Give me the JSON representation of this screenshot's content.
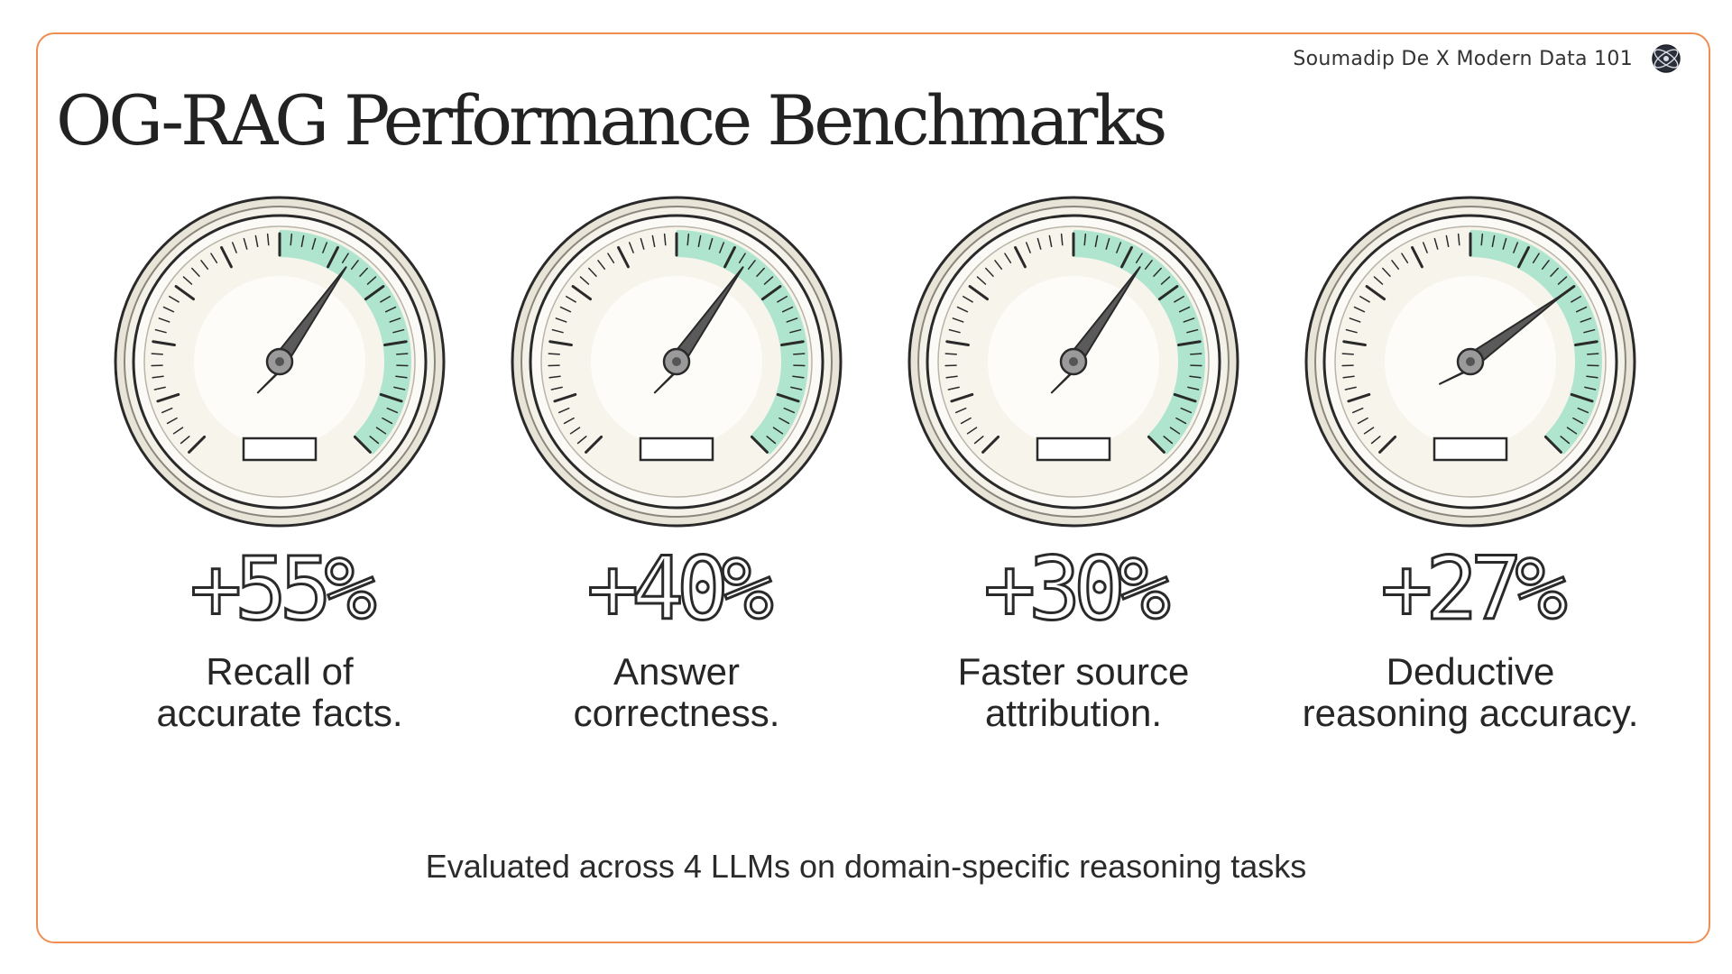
{
  "header": {
    "brand_text": "Soumadip De X Modern Data 101",
    "brand_icon": "globe-logo-icon"
  },
  "title": "OG-RAG Performance Benchmarks",
  "colors": {
    "frame_border": "#ef8d52",
    "gauge_green": "#a6e3cb",
    "gauge_face": "#f7f4ec",
    "ink": "#2a2a2a"
  },
  "metrics": [
    {
      "value": "+55%",
      "label_line1": "Recall of",
      "label_line2": "accurate facts.",
      "needle_level": 0.63
    },
    {
      "value": "+40%",
      "label_line1": "Answer",
      "label_line2": "correctness.",
      "needle_level": 0.63
    },
    {
      "value": "+30%",
      "label_line1": "Faster source",
      "label_line2": "attribution.",
      "needle_level": 0.63
    },
    {
      "value": "+27%",
      "label_line1": "Deductive",
      "label_line2": "reasoning accuracy.",
      "needle_level": 0.7
    }
  ],
  "footer": "Evaluated across 4 LLMs on domain-specific reasoning tasks"
}
